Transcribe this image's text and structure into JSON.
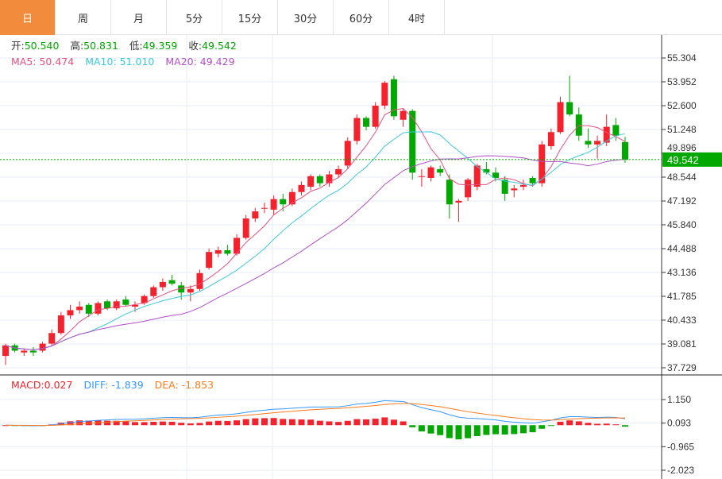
{
  "tabs": [
    "日",
    "周",
    "月",
    "5分",
    "15分",
    "30分",
    "60分",
    "4时"
  ],
  "active_tab": 0,
  "ohlc_info": {
    "open_label": "开:",
    "open": "50.540",
    "high_label": "高:",
    "high": "50.831",
    "low_label": "低:",
    "low": "49.359",
    "close_label": "收:",
    "close": "49.542"
  },
  "ma_info": {
    "ma5": "MA5: 50.474",
    "ma10": "MA10: 51.010",
    "ma20": "MA20: 49.429"
  },
  "macd_info": {
    "macd": "MACD:0.027",
    "diff": "DIFF: -1.839",
    "dea": "DEA: -1.853"
  },
  "colors": {
    "up": "#f5222d",
    "down": "#00a800",
    "ma5": "#e8507f",
    "ma10": "#3cc8dc",
    "ma20": "#b050c8",
    "diff": "#3399ff",
    "dea": "#ff7a1a",
    "accent": "#f28b3c"
  },
  "chart_data": {
    "type": "candlestick",
    "price_ticks": [
      "55.304",
      "53.952",
      "52.600",
      "51.248",
      "49.896",
      "48.544",
      "47.192",
      "45.840",
      "44.488",
      "43.136",
      "41.785",
      "40.433",
      "39.081",
      "37.729"
    ],
    "price_range": [
      37.729,
      55.304
    ],
    "current_price": "49.542",
    "macd_ticks": [
      "1.150",
      "0.093",
      "-0.965",
      "-2.023"
    ],
    "macd_range": [
      -2.023,
      1.15
    ],
    "candles": [
      [
        38.4,
        39.1,
        37.9,
        39.0
      ],
      [
        39.0,
        39.1,
        38.6,
        38.7
      ],
      [
        38.6,
        38.8,
        38.4,
        38.7
      ],
      [
        38.7,
        38.9,
        38.4,
        38.6
      ],
      [
        38.7,
        39.2,
        38.6,
        39.1
      ],
      [
        39.1,
        39.9,
        39.0,
        39.7
      ],
      [
        39.7,
        40.9,
        39.6,
        40.7
      ],
      [
        40.7,
        41.3,
        40.5,
        41.0
      ],
      [
        41.0,
        41.5,
        40.8,
        41.2
      ],
      [
        41.3,
        41.4,
        40.6,
        40.8
      ],
      [
        40.8,
        41.5,
        40.7,
        41.4
      ],
      [
        41.5,
        41.6,
        41.0,
        41.1
      ],
      [
        41.1,
        41.6,
        41.0,
        41.5
      ],
      [
        41.6,
        41.8,
        41.2,
        41.3
      ],
      [
        41.2,
        41.5,
        40.9,
        41.3
      ],
      [
        41.4,
        41.9,
        41.3,
        41.8
      ],
      [
        41.8,
        42.4,
        41.7,
        42.3
      ],
      [
        42.3,
        42.8,
        42.1,
        42.6
      ],
      [
        42.7,
        43.0,
        42.4,
        42.5
      ],
      [
        42.4,
        42.6,
        41.6,
        42.0
      ],
      [
        42.0,
        42.4,
        41.5,
        42.2
      ],
      [
        42.2,
        43.3,
        42.1,
        43.1
      ],
      [
        43.4,
        44.5,
        43.3,
        44.3
      ],
      [
        44.2,
        44.6,
        44.0,
        44.4
      ],
      [
        44.4,
        44.7,
        44.1,
        44.2
      ],
      [
        44.2,
        45.3,
        44.1,
        45.1
      ],
      [
        45.1,
        46.4,
        45.0,
        46.2
      ],
      [
        46.2,
        46.8,
        46.0,
        46.6
      ],
      [
        46.8,
        47.1,
        46.5,
        46.8
      ],
      [
        46.7,
        47.5,
        46.4,
        47.3
      ],
      [
        47.3,
        47.6,
        46.6,
        47.0
      ],
      [
        47.0,
        47.9,
        46.9,
        47.7
      ],
      [
        47.7,
        48.3,
        47.5,
        48.1
      ],
      [
        48.0,
        48.7,
        47.8,
        48.6
      ],
      [
        48.6,
        48.7,
        48.0,
        48.2
      ],
      [
        48.2,
        48.9,
        48.0,
        48.7
      ],
      [
        48.7,
        49.2,
        48.5,
        49.0
      ],
      [
        49.2,
        50.8,
        49.0,
        50.6
      ],
      [
        50.6,
        52.1,
        50.4,
        51.9
      ],
      [
        51.9,
        52.0,
        51.2,
        51.4
      ],
      [
        51.4,
        52.8,
        51.3,
        52.6
      ],
      [
        52.6,
        54.0,
        52.4,
        53.9
      ],
      [
        54.1,
        54.3,
        51.8,
        52.0
      ],
      [
        51.8,
        52.4,
        51.4,
        52.3
      ],
      [
        52.3,
        52.4,
        48.4,
        48.8
      ],
      [
        48.6,
        49.0,
        48.0,
        48.6
      ],
      [
        48.5,
        49.2,
        48.3,
        49.1
      ],
      [
        49.0,
        49.2,
        48.6,
        48.8
      ],
      [
        48.4,
        48.7,
        46.2,
        47.0
      ],
      [
        47.1,
        47.3,
        46.0,
        47.2
      ],
      [
        47.4,
        48.5,
        47.2,
        48.4
      ],
      [
        48.0,
        49.3,
        47.8,
        49.2
      ],
      [
        49.0,
        49.4,
        48.7,
        48.8
      ],
      [
        48.8,
        49.1,
        48.3,
        48.5
      ],
      [
        48.4,
        48.6,
        47.2,
        47.6
      ],
      [
        47.8,
        48.1,
        47.4,
        47.9
      ],
      [
        48.0,
        48.4,
        47.8,
        48.1
      ],
      [
        48.5,
        48.6,
        48.0,
        48.2
      ],
      [
        48.2,
        50.6,
        48.0,
        50.4
      ],
      [
        50.3,
        51.3,
        50.1,
        51.1
      ],
      [
        51.1,
        53.1,
        51.0,
        52.8
      ],
      [
        52.8,
        54.3,
        52.0,
        52.1
      ],
      [
        52.1,
        52.5,
        50.6,
        50.9
      ],
      [
        50.6,
        51.3,
        50.2,
        50.4
      ],
      [
        50.4,
        50.9,
        49.6,
        50.6
      ],
      [
        50.5,
        52.1,
        50.3,
        51.4
      ],
      [
        51.5,
        51.9,
        50.6,
        50.9
      ],
      [
        50.54,
        50.831,
        49.359,
        49.542
      ]
    ]
  }
}
